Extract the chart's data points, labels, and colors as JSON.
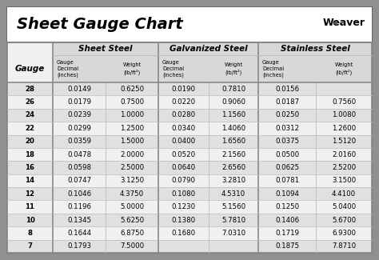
{
  "title": "Sheet Gauge Chart",
  "bg_outer": "#909090",
  "bg_inner": "#ffffff",
  "gauges": [
    28,
    26,
    24,
    22,
    20,
    18,
    16,
    14,
    12,
    11,
    10,
    8,
    7
  ],
  "sheet_steel": [
    [
      "0.0149",
      "0.6250"
    ],
    [
      "0.0179",
      "0.7500"
    ],
    [
      "0.0239",
      "1.0000"
    ],
    [
      "0.0299",
      "1.2500"
    ],
    [
      "0.0359",
      "1.5000"
    ],
    [
      "0.0478",
      "2.0000"
    ],
    [
      "0.0598",
      "2.5000"
    ],
    [
      "0.0747",
      "3.1250"
    ],
    [
      "0.1046",
      "4.3750"
    ],
    [
      "0.1196",
      "5.0000"
    ],
    [
      "0.1345",
      "5.6250"
    ],
    [
      "0.1644",
      "6.8750"
    ],
    [
      "0.1793",
      "7.5000"
    ]
  ],
  "galvanized_steel": [
    [
      "0.0190",
      "0.7810"
    ],
    [
      "0.0220",
      "0.9060"
    ],
    [
      "0.0280",
      "1.1560"
    ],
    [
      "0.0340",
      "1.4060"
    ],
    [
      "0.0400",
      "1.6560"
    ],
    [
      "0.0520",
      "2.1560"
    ],
    [
      "0.0640",
      "2.6560"
    ],
    [
      "0.0790",
      "3.2810"
    ],
    [
      "0.1080",
      "4.5310"
    ],
    [
      "0.1230",
      "5.1560"
    ],
    [
      "0.1380",
      "5.7810"
    ],
    [
      "0.1680",
      "7.0310"
    ],
    [
      "",
      ""
    ]
  ],
  "stainless_steel": [
    [
      "0.0156",
      ""
    ],
    [
      "0.0187",
      "0.7560"
    ],
    [
      "0.0250",
      "1.0080"
    ],
    [
      "0.0312",
      "1.2600"
    ],
    [
      "0.0375",
      "1.5120"
    ],
    [
      "0.0500",
      "2.0160"
    ],
    [
      "0.0625",
      "2.5200"
    ],
    [
      "0.0781",
      "3.1500"
    ],
    [
      "0.1094",
      "4.4100"
    ],
    [
      "0.1250",
      "5.0400"
    ],
    [
      "0.1406",
      "5.6700"
    ],
    [
      "0.1719",
      "6.9300"
    ],
    [
      "0.1875",
      "7.8710"
    ]
  ],
  "row_colors": [
    "#e0e0e0",
    "#f0f0f0"
  ],
  "header_col_bg": "#d0d0d0",
  "divider_color": "#888888",
  "light_divider": "#bbbbbb",
  "title_bg": "#ffffff",
  "table_bg": "#ffffff"
}
